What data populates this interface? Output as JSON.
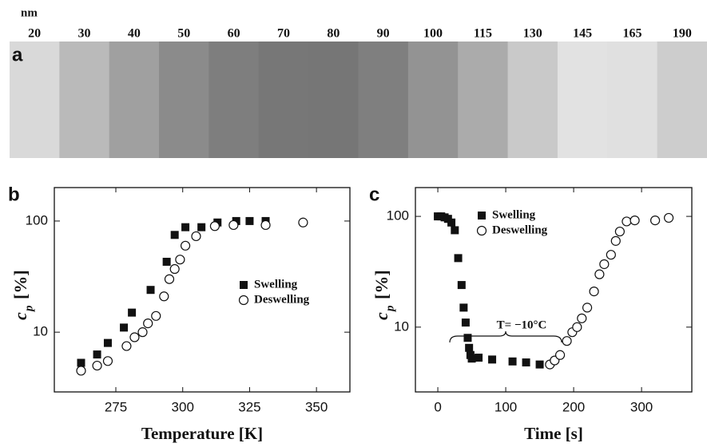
{
  "panel_a": {
    "label": "a",
    "unit": "nm",
    "labels": [
      "20",
      "30",
      "40",
      "50",
      "60",
      "70",
      "80",
      "90",
      "100",
      "115",
      "130",
      "145",
      "165",
      "190"
    ],
    "colors": [
      "#d9d9d9",
      "#bababa",
      "#a0a0a0",
      "#8b8b8b",
      "#7e7e7e",
      "#777777",
      "#767676",
      "#7f7f7f",
      "#939393",
      "#ababab",
      "#c9c9c9",
      "#e2e2e2",
      "#e0e0e0",
      "#cdcdcd"
    ]
  },
  "chart_data": [
    {
      "type": "scatter",
      "panel": "b",
      "ylabel": "c",
      "ylabel_sub": "p",
      "ylabel_unit": "[%]",
      "xlabel": "Temperature [K]",
      "yscale": "log",
      "xlim": [
        252,
        362.5
      ],
      "xticks": [
        275,
        300,
        325,
        350
      ],
      "ylim": [
        2.9,
        200
      ],
      "yticks": [
        10,
        100
      ],
      "legend": "center-right",
      "series": [
        {
          "name": "Swelling",
          "marker": "square",
          "color": "#111111",
          "x": [
            262,
            268,
            272,
            278,
            281,
            288,
            294,
            297,
            301,
            307,
            313,
            320,
            325,
            331
          ],
          "values": [
            5.3,
            6.3,
            8,
            11,
            15,
            24,
            43,
            75,
            88,
            88,
            97,
            100,
            100,
            100
          ]
        },
        {
          "name": "Deswelling",
          "marker": "circle",
          "color": "#111111",
          "x": [
            262,
            268,
            272,
            279,
            282,
            285,
            287,
            290,
            293,
            295,
            297,
            299,
            301,
            305,
            312,
            319,
            331,
            345
          ],
          "values": [
            4.5,
            5,
            5.5,
            7.5,
            9,
            10,
            12,
            14,
            21,
            30,
            37,
            45,
            60,
            73,
            90,
            92,
            92,
            97
          ]
        }
      ]
    },
    {
      "type": "scatter",
      "panel": "c",
      "ylabel": "c",
      "ylabel_sub": "p",
      "ylabel_unit": "[%]",
      "xlabel": "Time [s]",
      "yscale": "log",
      "xlim": [
        -33,
        374
      ],
      "xticks": [
        0,
        100,
        200,
        300
      ],
      "ylim": [
        2.6,
        182
      ],
      "yticks": [
        10,
        100
      ],
      "legend": "top-left",
      "annotation": "T= −10°C",
      "series": [
        {
          "name": "Swelling",
          "marker": "square",
          "color": "#111111",
          "x": [
            0,
            5,
            10,
            15,
            20,
            25,
            30,
            35,
            38,
            41,
            44,
            46,
            48,
            50,
            60,
            80,
            110,
            130,
            150
          ],
          "values": [
            100,
            100,
            98,
            95,
            88,
            75,
            42,
            24,
            15,
            11,
            8,
            6.5,
            5.6,
            5.2,
            5.3,
            5.1,
            4.9,
            4.8,
            4.6
          ]
        },
        {
          "name": "Deswelling",
          "marker": "circle",
          "color": "#111111",
          "x": [
            165,
            172,
            180,
            190,
            198,
            205,
            212,
            220,
            230,
            238,
            245,
            255,
            262,
            268,
            278,
            290,
            320,
            340
          ],
          "values": [
            4.6,
            5,
            5.6,
            7.5,
            9,
            10,
            12,
            15,
            21,
            30,
            37,
            45,
            60,
            73,
            90,
            92,
            92,
            97
          ]
        }
      ]
    }
  ]
}
